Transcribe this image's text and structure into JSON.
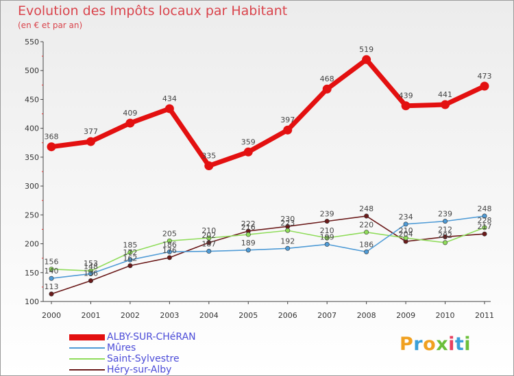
{
  "title": "Evolution des Impôts locaux par Habitant",
  "subtitle": "(en € et par an)",
  "logo": {
    "text": "Proxiti",
    "colors": [
      "#f0a020",
      "#3a9fd8",
      "#f0a020",
      "#6bbf3a",
      "#e84060",
      "#3a9fd8",
      "#6bbf3a"
    ]
  },
  "chart_data": {
    "type": "line",
    "title": "Evolution des Impôts locaux par Habitant",
    "subtitle": "(en € et par an)",
    "xlabel": "",
    "ylabel": "",
    "categories": [
      "2000",
      "2001",
      "2002",
      "2003",
      "2004",
      "2005",
      "2006",
      "2007",
      "2008",
      "2009",
      "2010",
      "2011"
    ],
    "ylim": [
      100,
      550
    ],
    "yticks": [
      100,
      150,
      200,
      250,
      300,
      350,
      400,
      450,
      500,
      550
    ],
    "grid": false,
    "legend_position": "bottom-left",
    "series": [
      {
        "name": "ALBY-SUR-CHéRAN",
        "color": "#e31010",
        "values": [
          368,
          377,
          409,
          434,
          335,
          359,
          397,
          468,
          519,
          439,
          441,
          473
        ]
      },
      {
        "name": "Mûres",
        "color": "#4f9bd6",
        "values": [
          140,
          148,
          172,
          186,
          187,
          189,
          192,
          199,
          186,
          234,
          239,
          248
        ]
      },
      {
        "name": "Saint-Sylvestre",
        "color": "#8fdc5a",
        "values": [
          156,
          153,
          185,
          205,
          210,
          216,
          223,
          210,
          220,
          210,
          202,
          228
        ]
      },
      {
        "name": "Héry-sur-Alby",
        "color": "#6b1a1a",
        "values": [
          113,
          136,
          162,
          176,
          202,
          222,
          230,
          239,
          248,
          204,
          212,
          217
        ]
      }
    ],
    "data_labels": [
      [
        "368",
        "377",
        "409",
        "434",
        "335",
        "359",
        "397",
        "468",
        "519",
        "439",
        "441",
        "473"
      ],
      [
        "140",
        "148",
        "172",
        "186",
        "187",
        "189",
        "192",
        "199",
        "186",
        "234",
        "239",
        "248"
      ],
      [
        "156",
        "153",
        "185",
        "205",
        "210",
        "216",
        "223",
        "210",
        "220",
        "210",
        "202",
        "228"
      ],
      [
        "113",
        "136",
        "162",
        "176",
        "202",
        "222",
        "230",
        "239",
        "248",
        "204",
        "212",
        "217"
      ]
    ]
  }
}
